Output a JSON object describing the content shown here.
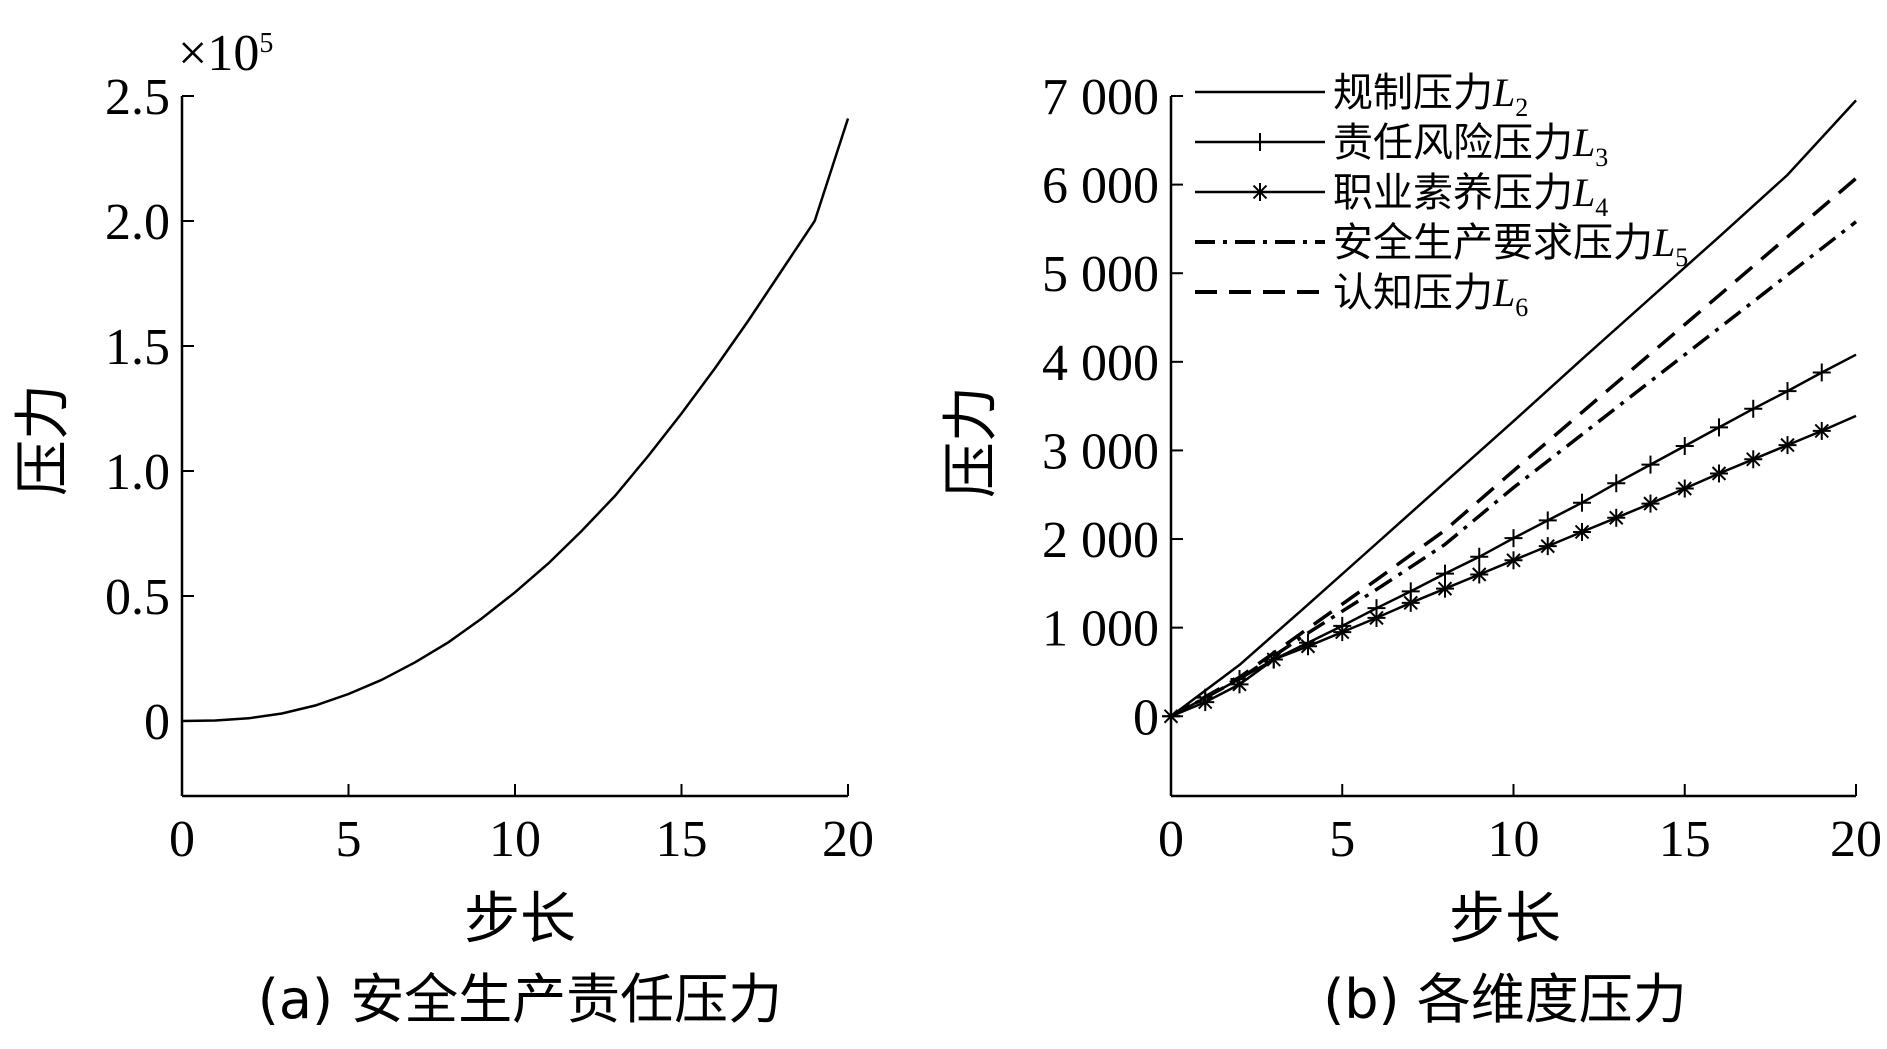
{
  "chart_data": [
    {
      "type": "line",
      "caption": "(a) 安全生产责任压力",
      "xlabel": "步长",
      "ylabel": "压力",
      "xlim": [
        0,
        20
      ],
      "ylim": [
        -0.3,
        2.5
      ],
      "y_multiplier": "×10",
      "y_multiplier_exp": "5",
      "xticks": [
        "0",
        "5",
        "10",
        "15",
        "20"
      ],
      "yticks": [
        "0",
        "0.5",
        "1.0",
        "1.5",
        "2.0",
        "2.5"
      ],
      "grid": false,
      "series": [
        {
          "x": [
            0,
            1,
            2,
            3,
            4,
            5,
            6,
            7,
            8,
            9,
            10,
            11,
            12,
            13,
            14,
            15,
            16,
            17,
            18,
            19,
            20
          ],
          "y": [
            0,
            0.002,
            0.011,
            0.03,
            0.062,
            0.108,
            0.165,
            0.235,
            0.315,
            0.41,
            0.515,
            0.63,
            0.76,
            0.9,
            1.06,
            1.23,
            1.41,
            1.6,
            1.8,
            2.0,
            2.41
          ]
        }
      ]
    },
    {
      "type": "line",
      "caption": "(b) 各维度压力",
      "xlabel": "步长",
      "ylabel": "压力",
      "xlim": [
        0,
        20
      ],
      "ylim": [
        -900,
        7000
      ],
      "xticks": [
        "0",
        "5",
        "10",
        "15",
        "20"
      ],
      "yticks": [
        "0",
        "1 000",
        "2 000",
        "3 000",
        "4 000",
        "5 000",
        "6 000",
        "7 000"
      ],
      "grid": false,
      "legend_position": "top-left",
      "series": [
        {
          "name": "规制压力",
          "sym": "L",
          "sub": "2",
          "style": "solid",
          "marker": "none",
          "x": [
            0,
            2,
            4,
            6,
            8,
            10,
            12,
            14,
            16,
            18,
            20
          ],
          "y": [
            0,
            580,
            1260,
            1950,
            2640,
            3330,
            4030,
            4720,
            5410,
            6110,
            6950
          ]
        },
        {
          "name": "责任风险压力",
          "sym": "L",
          "sub": "3",
          "style": "solid",
          "marker": "plus",
          "x": [
            0,
            1,
            2,
            3,
            4,
            5,
            6,
            7,
            8,
            9,
            10,
            11,
            12,
            13,
            14,
            15,
            16,
            17,
            18,
            19,
            20
          ],
          "y": [
            0,
            210,
            420,
            640,
            830,
            1020,
            1220,
            1410,
            1610,
            1800,
            2010,
            2210,
            2410,
            2630,
            2840,
            3050,
            3260,
            3470,
            3670,
            3880,
            4080
          ]
        },
        {
          "name": "职业素养压力",
          "sym": "L",
          "sub": "4",
          "style": "solid",
          "marker": "star",
          "x": [
            0,
            1,
            2,
            3,
            4,
            5,
            6,
            7,
            8,
            9,
            10,
            11,
            12,
            13,
            14,
            15,
            16,
            17,
            18,
            19,
            20
          ],
          "y": [
            0,
            160,
            360,
            640,
            790,
            950,
            1110,
            1280,
            1440,
            1600,
            1760,
            1920,
            2080,
            2240,
            2400,
            2570,
            2740,
            2900,
            3060,
            3220,
            3390
          ]
        },
        {
          "name": "安全生产要求压力",
          "sym": "L",
          "sub": "5",
          "style": "dashdot",
          "marker": "none",
          "x": [
            0,
            2,
            4,
            6,
            8,
            10,
            12,
            14,
            16,
            18,
            20
          ],
          "y": [
            0,
            420,
            940,
            1430,
            1940,
            2580,
            3180,
            3780,
            4380,
            4980,
            5580
          ]
        },
        {
          "name": "认知压力",
          "sym": "L",
          "sub": "6",
          "style": "dashed",
          "marker": "none",
          "x": [
            0,
            2,
            4,
            6,
            8,
            10,
            12,
            14,
            16,
            18,
            20
          ],
          "y": [
            0,
            440,
            990,
            1540,
            2100,
            2770,
            3430,
            4090,
            4750,
            5410,
            6070
          ]
        }
      ]
    }
  ]
}
